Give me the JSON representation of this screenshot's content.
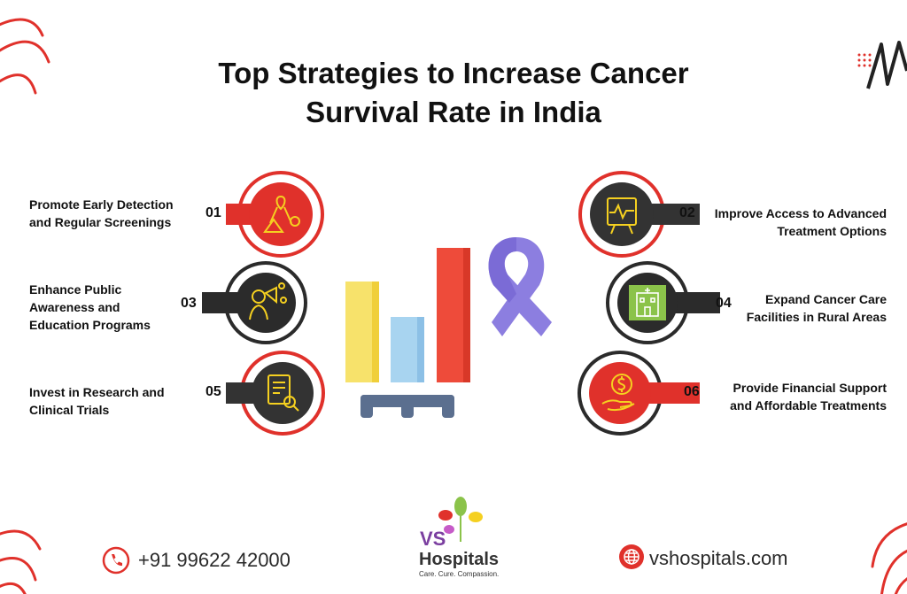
{
  "title": {
    "line1": "Top Strategies to Increase Cancer",
    "line2": "Survival Rate in India"
  },
  "strategies": [
    {
      "number": "01",
      "line1": "Promote Early Detection",
      "line2": "and Regular Screenings",
      "line3": "",
      "icon": "awareness-ribbon-icon",
      "accent": "#e0312b"
    },
    {
      "number": "02",
      "line1": "Improve Access to Advanced",
      "line2": "Treatment Options",
      "line3": "",
      "icon": "medical-monitor-icon",
      "accent": "#e0312b"
    },
    {
      "number": "03",
      "line1": "Enhance Public",
      "line2": "Awareness and",
      "line3": "Education Programs",
      "icon": "megaphone-icon",
      "accent": "#2b2b2b"
    },
    {
      "number": "04",
      "line1": "Expand Cancer Care",
      "line2": "Facilities in Rural Areas",
      "line3": "",
      "icon": "hospital-building-icon",
      "accent": "#8bc34a"
    },
    {
      "number": "05",
      "line1": "Invest in Research and",
      "line2": "Clinical Trials",
      "line3": "",
      "icon": "research-document-icon",
      "accent": "#e0312b"
    },
    {
      "number": "06",
      "line1": "Provide Financial Support",
      "line2": "and Affordable Treatments",
      "line3": "",
      "icon": "dollar-hand-icon",
      "accent": "#e0312b"
    }
  ],
  "bars_graphic": {
    "colors": [
      "#f7e26b",
      "#a8d4f0",
      "#ee4b3a"
    ]
  },
  "ribbon_color": "#8c7ee0",
  "footer": {
    "phone": "+91 99622 42000",
    "website": "vshospitals.com",
    "logo_initials": "VS",
    "logo_name": "Hospitals",
    "logo_tagline": "Care. Cure. Compassion."
  },
  "colors": {
    "red": "#e0312b",
    "dark": "#333333",
    "green": "#8bc34a",
    "yellow": "#f7e26b",
    "blue": "#a8d4f0",
    "purple": "#8c7ee0"
  }
}
